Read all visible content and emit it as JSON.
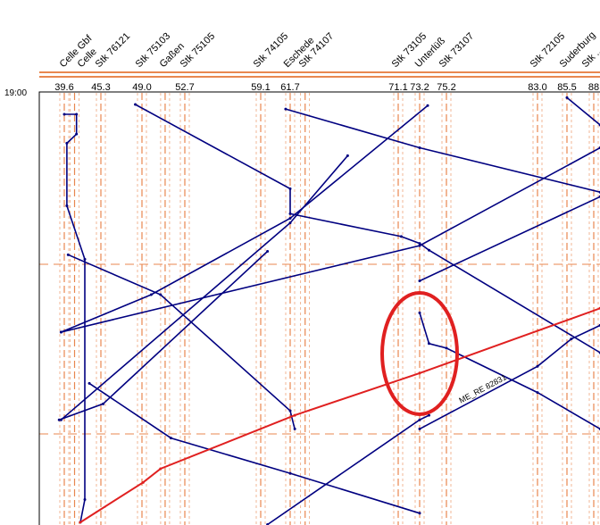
{
  "start_time": "19:00",
  "colors": {
    "station_line": "#e8874f",
    "train": "#000080",
    "highlight_train": "#e02020",
    "annotation": "#e02020",
    "selected_train": "#1a1aff"
  },
  "stations": [
    {
      "name": "Celle Gbf",
      "km": 39.6,
      "km_label": "39.6"
    },
    {
      "name": "Celle",
      "km": 41.2,
      "km_label": ""
    },
    {
      "name": "Stk 76121",
      "km": 45.3,
      "km_label": "45.3"
    },
    {
      "name": "Stk 75103",
      "km": 49.0,
      "km_label": "49.0"
    },
    {
      "name": "Gaßen",
      "km": 51.0,
      "km_label": ""
    },
    {
      "name": "Stk 75105",
      "km": 52.7,
      "km_label": "52.7"
    },
    {
      "name": "Stk 74105",
      "km": 59.1,
      "km_label": "59.1"
    },
    {
      "name": "Eschede",
      "km": 61.7,
      "km_label": "61.7"
    },
    {
      "name": "Stk 74107",
      "km": 63.0,
      "km_label": ""
    },
    {
      "name": "Stk 73105",
      "km": 71.1,
      "km_label": "71.1"
    },
    {
      "name": "Unterlüß",
      "km": 73.2,
      "km_label": "73.2"
    },
    {
      "name": "Stk 73107",
      "km": 75.2,
      "km_label": "75.2"
    },
    {
      "name": "Stk 72105",
      "km": 83.0,
      "km_label": "83.0"
    },
    {
      "name": "Suderburg",
      "km": 85.5,
      "km_label": "85.5"
    },
    {
      "name": "Stk ...",
      "km": 88.0,
      "km_label": "88"
    }
  ],
  "trains": [
    {
      "label": "",
      "highlight": false,
      "points": [
        [
          48.4,
          1.1
        ],
        [
          61.7,
          8.5
        ],
        [
          61.7,
          10.7
        ],
        [
          71.4,
          12.7
        ],
        [
          73.2,
          13.3
        ],
        [
          73.9,
          13.9
        ],
        [
          88.6,
          22.9
        ]
      ]
    },
    {
      "label": "",
      "highlight": false,
      "points": [
        [
          61.3,
          1.5
        ],
        [
          73.2,
          4.9
        ],
        [
          88.6,
          8.8
        ]
      ]
    },
    {
      "label": "",
      "highlight": false,
      "points": [
        [
          73.8,
          1.2
        ],
        [
          61.7,
          11.1
        ],
        [
          49.8,
          17.8
        ],
        [
          39.1,
          21.1
        ]
      ]
    },
    {
      "label": "",
      "highlight": false,
      "points": [
        [
          39.1,
          28.8
        ],
        [
          61.7,
          11.5
        ],
        [
          66.7,
          5.6
        ]
      ]
    },
    {
      "label": "",
      "highlight": false,
      "points": [
        [
          40.2,
          14.3
        ],
        [
          50.6,
          17.8
        ],
        [
          61.7,
          28.0
        ],
        [
          62.1,
          29.6
        ]
      ]
    },
    {
      "label": "",
      "highlight": false,
      "points": [
        [
          39.1,
          21.1
        ],
        [
          73.2,
          13.5
        ],
        [
          88.6,
          4.9
        ]
      ]
    },
    {
      "label": "",
      "highlight": false,
      "points": [
        [
          73.2,
          19.4
        ],
        [
          73.9,
          22.1
        ],
        [
          75.2,
          22.5
        ],
        [
          83.0,
          26.4
        ],
        [
          88.6,
          29.6
        ]
      ]
    },
    {
      "label": "ME_RE 82831",
      "highlight": false,
      "points": [
        [
          73.2,
          29.6
        ],
        [
          83.0,
          24.1
        ],
        [
          85.9,
          21.7
        ],
        [
          88.6,
          20.5
        ]
      ]
    },
    {
      "label": "",
      "highlight": false,
      "points": [
        [
          73.2,
          16.6
        ],
        [
          88.6,
          9.2
        ]
      ]
    },
    {
      "label": "",
      "highlight": false,
      "points": [
        [
          43.5,
          25.6
        ],
        [
          51.5,
          30.4
        ],
        [
          61.7,
          33.5
        ],
        [
          73.2,
          37.0
        ]
      ]
    },
    {
      "label": "",
      "highlight": false,
      "points": [
        [
          59.7,
          38.0
        ],
        [
          73.2,
          28.8
        ],
        [
          73.9,
          28.4
        ]
      ]
    },
    {
      "label": "",
      "highlight": false,
      "points": [
        [
          85.5,
          0.5
        ],
        [
          88.6,
          2.9
        ]
      ]
    },
    {
      "label": "",
      "highlight": false,
      "points": [
        [
          38.8,
          28.8
        ],
        [
          45.5,
          27.4
        ],
        [
          59.7,
          14.0
        ]
      ]
    },
    {
      "label": "",
      "highlight": false,
      "points": [
        [
          39.6,
          1.96
        ],
        [
          41.5,
          1.96
        ],
        [
          41.5,
          3.7
        ],
        [
          40.0,
          4.5
        ],
        [
          40.0,
          10.0
        ],
        [
          42.8,
          14.7
        ],
        [
          42.8,
          35.8
        ],
        [
          42.1,
          37.8
        ]
      ]
    },
    {
      "label": "",
      "highlight": true,
      "points": [
        [
          42.1,
          37.8
        ],
        [
          49.1,
          34.3
        ],
        [
          50.6,
          33.1
        ],
        [
          62.1,
          28.4
        ],
        [
          73.2,
          24.7
        ],
        [
          88.6,
          19.0
        ]
      ]
    }
  ],
  "annotation": {
    "shape": "ellipse",
    "around_km": 72.4,
    "around_min": 22
  }
}
